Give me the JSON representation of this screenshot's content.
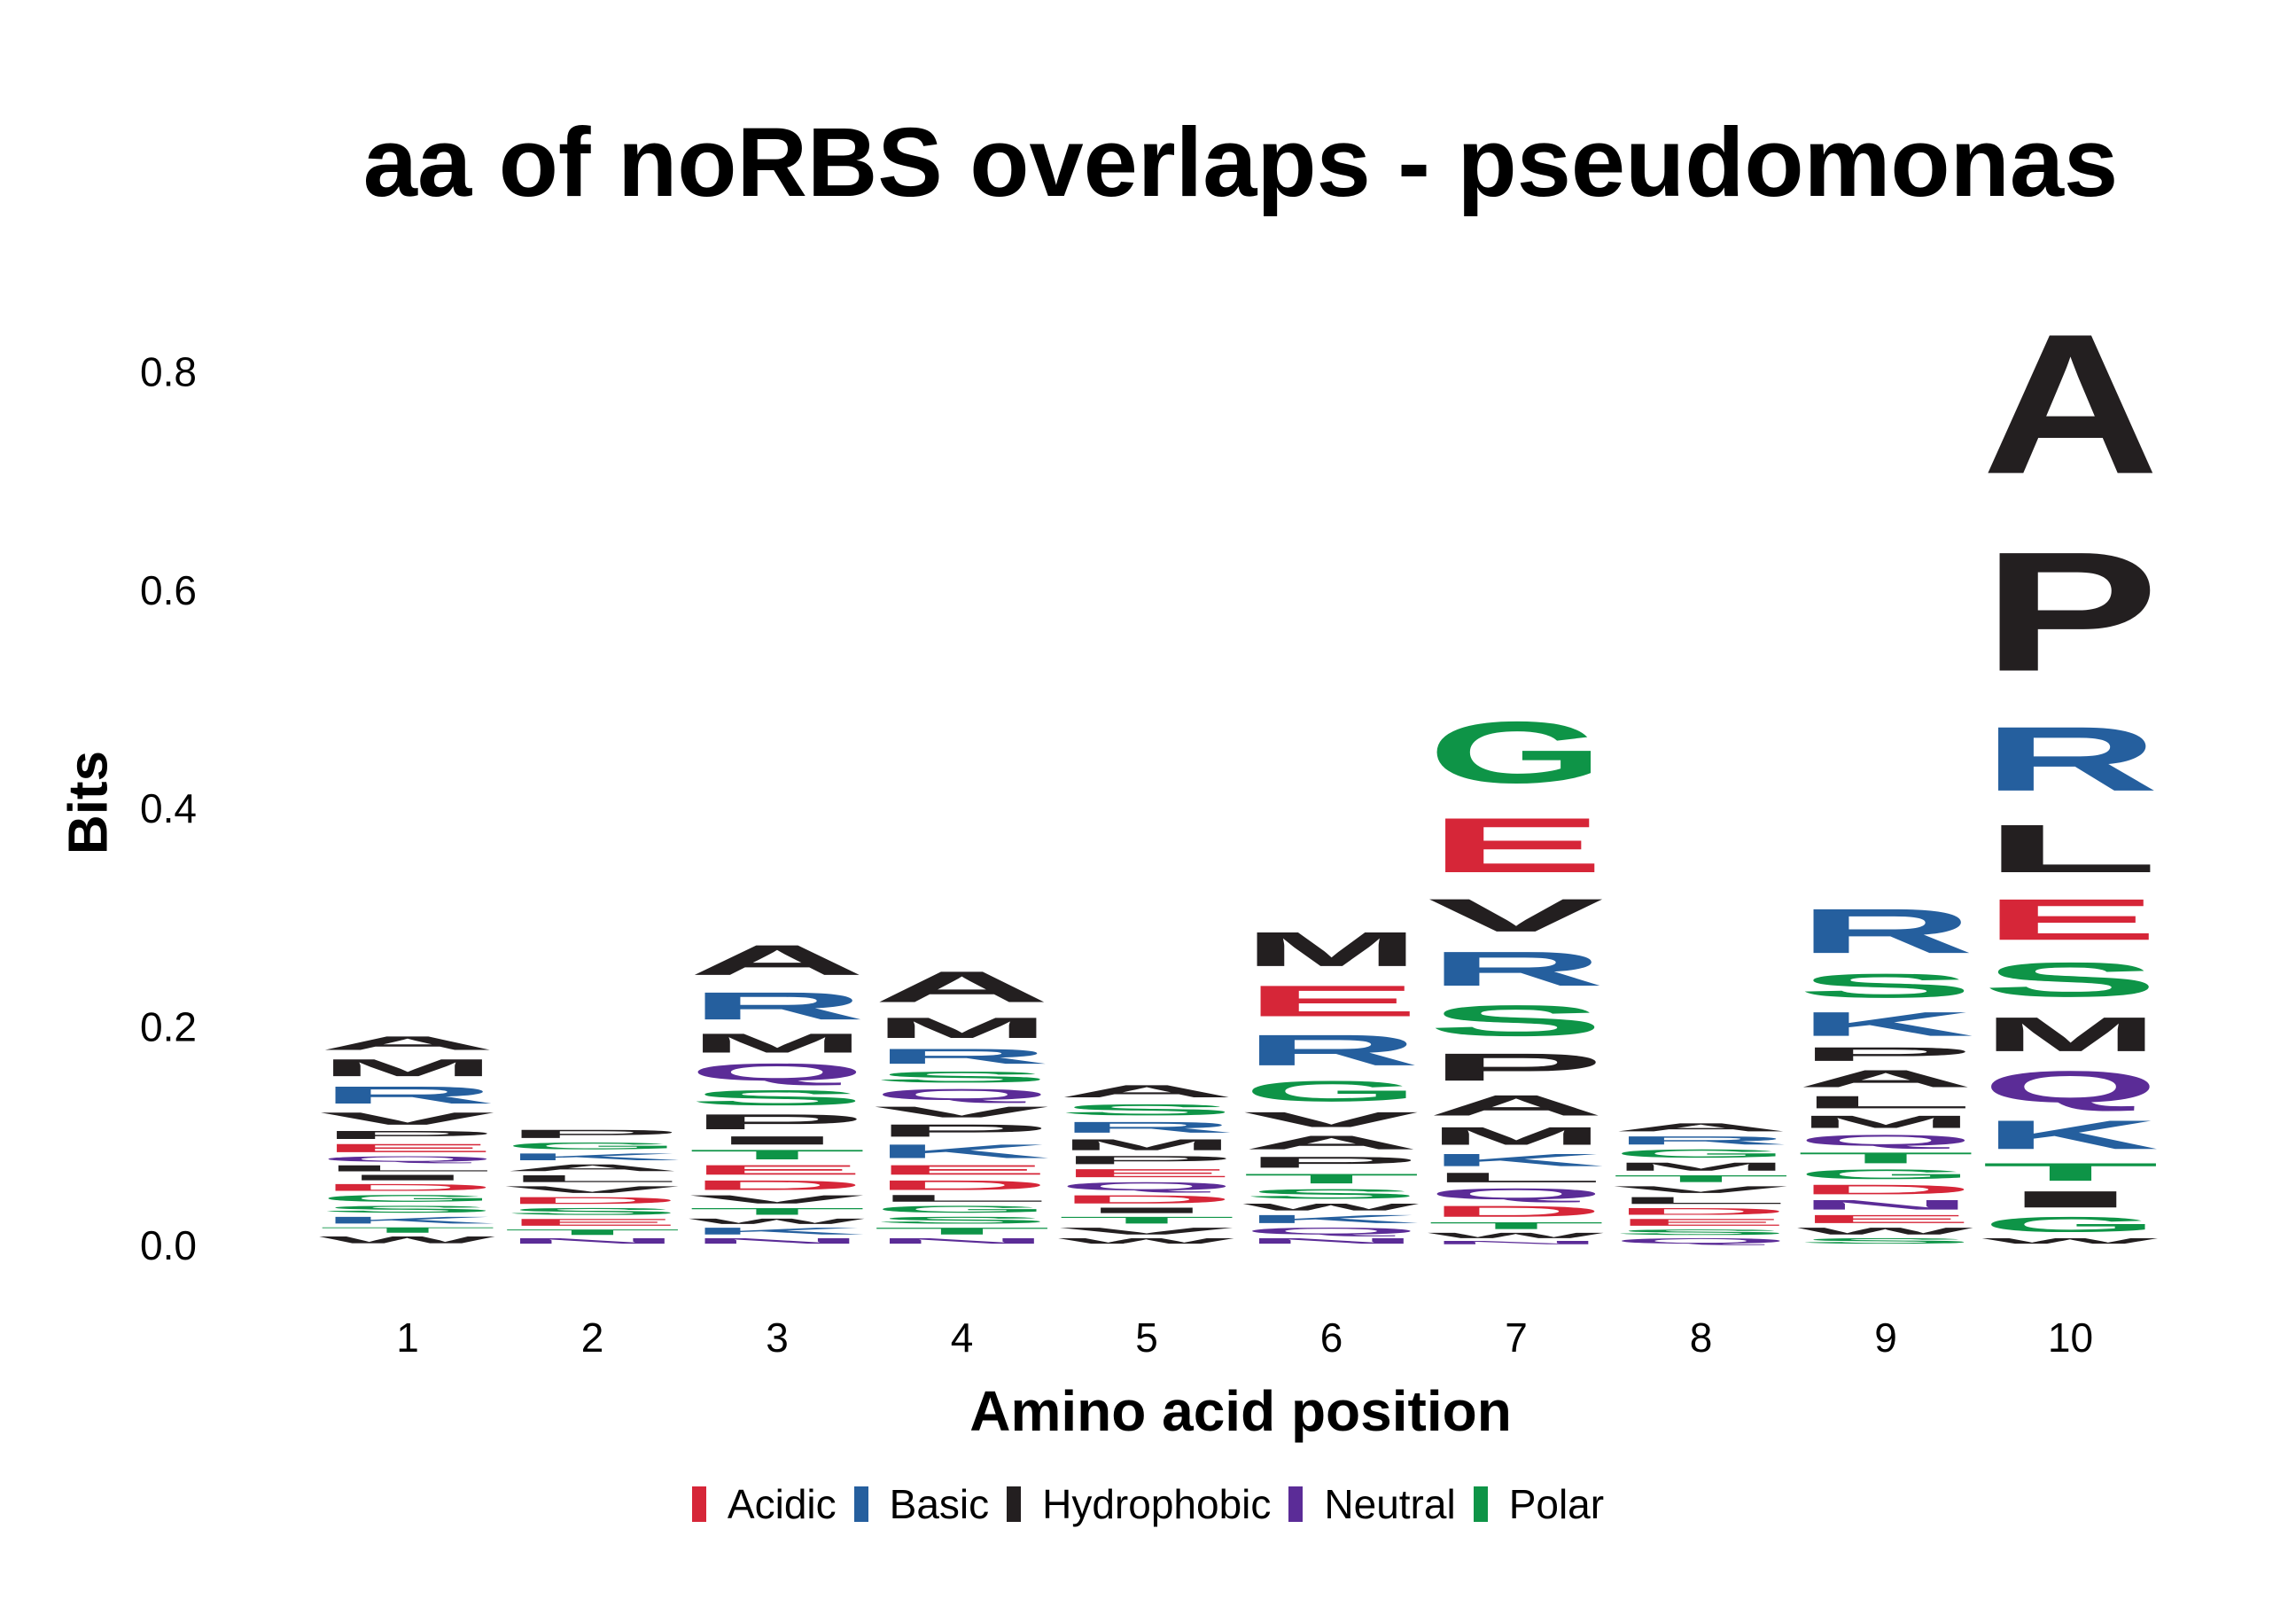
{
  "chart_data": {
    "type": "sequence-logo",
    "title": "aa of noRBS overlaps - pseudomonas",
    "xlabel": "Amino acid position",
    "ylabel": "Bits",
    "ylim": [
      0,
      0.88
    ],
    "yticks": [
      "0.0",
      "0.2",
      "0.4",
      "0.6",
      "0.8"
    ],
    "ytick_values": [
      0,
      0.2,
      0.4,
      0.6,
      0.8
    ],
    "categories": [
      "1",
      "2",
      "3",
      "4",
      "5",
      "6",
      "7",
      "8",
      "9",
      "10"
    ],
    "color_groups": {
      "Acidic": "#d62638",
      "Basic": "#255f9e",
      "Hydrophobic": "#231f20",
      "Neutral": "#5b2c97",
      "Polar": "#0e9447"
    },
    "legend": [
      "Acidic",
      "Basic",
      "Hydrophobic",
      "Neutral",
      "Polar"
    ],
    "positions": [
      {
        "position": "1",
        "total": 0.205,
        "letters": [
          {
            "aa": "W",
            "group": "Hydrophobic",
            "bits": 0.01
          },
          {
            "aa": "T",
            "group": "Polar",
            "bits": 0.008
          },
          {
            "aa": "K",
            "group": "Basic",
            "bits": 0.01
          },
          {
            "aa": "S",
            "group": "Polar",
            "bits": 0.01
          },
          {
            "aa": "G",
            "group": "Polar",
            "bits": 0.01
          },
          {
            "aa": "D",
            "group": "Acidic",
            "bits": 0.01
          },
          {
            "aa": "I",
            "group": "Hydrophobic",
            "bits": 0.008
          },
          {
            "aa": "L",
            "group": "Hydrophobic",
            "bits": 0.009
          },
          {
            "aa": "Q",
            "group": "Neutral",
            "bits": 0.008
          },
          {
            "aa": "E",
            "group": "Acidic",
            "bits": 0.012
          },
          {
            "aa": "P",
            "group": "Hydrophobic",
            "bits": 0.012
          },
          {
            "aa": "V",
            "group": "Hydrophobic",
            "bits": 0.018
          },
          {
            "aa": "R",
            "group": "Basic",
            "bits": 0.025
          },
          {
            "aa": "M",
            "group": "Hydrophobic",
            "bits": 0.025
          },
          {
            "aa": "A",
            "group": "Hydrophobic",
            "bits": 0.02
          }
        ]
      },
      {
        "position": "2",
        "total": 0.115,
        "letters": [
          {
            "aa": "N",
            "group": "Neutral",
            "bits": 0.008
          },
          {
            "aa": "T",
            "group": "Polar",
            "bits": 0.008
          },
          {
            "aa": "E",
            "group": "Acidic",
            "bits": 0.01
          },
          {
            "aa": "S",
            "group": "Polar",
            "bits": 0.01
          },
          {
            "aa": "D",
            "group": "Acidic",
            "bits": 0.01
          },
          {
            "aa": "V",
            "group": "Hydrophobic",
            "bits": 0.01
          },
          {
            "aa": "L",
            "group": "Hydrophobic",
            "bits": 0.01
          },
          {
            "aa": "A",
            "group": "Hydrophobic",
            "bits": 0.01
          },
          {
            "aa": "K",
            "group": "Basic",
            "bits": 0.01
          },
          {
            "aa": "G",
            "group": "Polar",
            "bits": 0.01
          },
          {
            "aa": "P",
            "group": "Hydrophobic",
            "bits": 0.012
          }
        ]
      },
      {
        "position": "3",
        "total": 0.31,
        "letters": [
          {
            "aa": "N",
            "group": "Neutral",
            "bits": 0.008
          },
          {
            "aa": "K",
            "group": "Basic",
            "bits": 0.01
          },
          {
            "aa": "W",
            "group": "Hydrophobic",
            "bits": 0.008
          },
          {
            "aa": "T",
            "group": "Polar",
            "bits": 0.01
          },
          {
            "aa": "V",
            "group": "Hydrophobic",
            "bits": 0.012
          },
          {
            "aa": "D",
            "group": "Acidic",
            "bits": 0.014
          },
          {
            "aa": "E",
            "group": "Acidic",
            "bits": 0.014
          },
          {
            "aa": "T",
            "group": "Polar",
            "bits": 0.014
          },
          {
            "aa": "I",
            "group": "Hydrophobic",
            "bits": 0.012
          },
          {
            "aa": "P",
            "group": "Hydrophobic",
            "bits": 0.022
          },
          {
            "aa": "S",
            "group": "Polar",
            "bits": 0.022
          },
          {
            "aa": "Q",
            "group": "Neutral",
            "bits": 0.025
          },
          {
            "aa": "M",
            "group": "Hydrophobic",
            "bits": 0.028
          },
          {
            "aa": "R",
            "group": "Basic",
            "bits": 0.04
          },
          {
            "aa": "A",
            "group": "Hydrophobic",
            "bits": 0.044
          }
        ]
      },
      {
        "position": "4",
        "total": 0.26,
        "letters": [
          {
            "aa": "N",
            "group": "Neutral",
            "bits": 0.008
          },
          {
            "aa": "T",
            "group": "Polar",
            "bits": 0.01
          },
          {
            "aa": "S",
            "group": "Polar",
            "bits": 0.01
          },
          {
            "aa": "G",
            "group": "Polar",
            "bits": 0.01
          },
          {
            "aa": "L",
            "group": "Hydrophobic",
            "bits": 0.01
          },
          {
            "aa": "D",
            "group": "Acidic",
            "bits": 0.014
          },
          {
            "aa": "E",
            "group": "Acidic",
            "bits": 0.014
          },
          {
            "aa": "K",
            "group": "Basic",
            "bits": 0.02
          },
          {
            "aa": "P",
            "group": "Hydrophobic",
            "bits": 0.018
          },
          {
            "aa": "V",
            "group": "Hydrophobic",
            "bits": 0.016
          },
          {
            "aa": "Q",
            "group": "Neutral",
            "bits": 0.016
          },
          {
            "aa": "S",
            "group": "Polar",
            "bits": 0.016
          },
          {
            "aa": "R",
            "group": "Basic",
            "bits": 0.022
          },
          {
            "aa": "M",
            "group": "Hydrophobic",
            "bits": 0.03
          },
          {
            "aa": "A",
            "group": "Hydrophobic",
            "bits": 0.045
          }
        ]
      },
      {
        "position": "5",
        "total": 0.18,
        "letters": [
          {
            "aa": "W",
            "group": "Hydrophobic",
            "bits": 0.008
          },
          {
            "aa": "V",
            "group": "Hydrophobic",
            "bits": 0.01
          },
          {
            "aa": "T",
            "group": "Polar",
            "bits": 0.01
          },
          {
            "aa": "I",
            "group": "Hydrophobic",
            "bits": 0.008
          },
          {
            "aa": "D",
            "group": "Acidic",
            "bits": 0.012
          },
          {
            "aa": "Q",
            "group": "Neutral",
            "bits": 0.012
          },
          {
            "aa": "E",
            "group": "Acidic",
            "bits": 0.012
          },
          {
            "aa": "P",
            "group": "Hydrophobic",
            "bits": 0.012
          },
          {
            "aa": "M",
            "group": "Hydrophobic",
            "bits": 0.016
          },
          {
            "aa": "R",
            "group": "Basic",
            "bits": 0.016
          },
          {
            "aa": "S",
            "group": "Polar",
            "bits": 0.016
          },
          {
            "aa": "A",
            "group": "Hydrophobic",
            "bits": 0.018
          }
        ]
      },
      {
        "position": "6",
        "total": 0.355,
        "letters": [
          {
            "aa": "N",
            "group": "Neutral",
            "bits": 0.008
          },
          {
            "aa": "Q",
            "group": "Neutral",
            "bits": 0.01
          },
          {
            "aa": "K",
            "group": "Basic",
            "bits": 0.012
          },
          {
            "aa": "W",
            "group": "Hydrophobic",
            "bits": 0.01
          },
          {
            "aa": "S",
            "group": "Polar",
            "bits": 0.014
          },
          {
            "aa": "T",
            "group": "Polar",
            "bits": 0.014
          },
          {
            "aa": "P",
            "group": "Hydrophobic",
            "bits": 0.016
          },
          {
            "aa": "A",
            "group": "Hydrophobic",
            "bits": 0.02
          },
          {
            "aa": "V",
            "group": "Hydrophobic",
            "bits": 0.022
          },
          {
            "aa": "G",
            "group": "Polar",
            "bits": 0.03
          },
          {
            "aa": "R",
            "group": "Basic",
            "bits": 0.045
          },
          {
            "aa": "E",
            "group": "Acidic",
            "bits": 0.045
          },
          {
            "aa": "M",
            "group": "Hydrophobic",
            "bits": 0.05
          }
        ]
      },
      {
        "position": "7",
        "total": 0.52,
        "letters": [
          {
            "aa": "N",
            "group": "Neutral",
            "bits": 0.005
          },
          {
            "aa": "W",
            "group": "Hydrophobic",
            "bits": 0.008
          },
          {
            "aa": "T",
            "group": "Polar",
            "bits": 0.01
          },
          {
            "aa": "D",
            "group": "Acidic",
            "bits": 0.016
          },
          {
            "aa": "Q",
            "group": "Neutral",
            "bits": 0.016
          },
          {
            "aa": "L",
            "group": "Hydrophobic",
            "bits": 0.014
          },
          {
            "aa": "K",
            "group": "Basic",
            "bits": 0.018
          },
          {
            "aa": "M",
            "group": "Hydrophobic",
            "bits": 0.026
          },
          {
            "aa": "A",
            "group": "Hydrophobic",
            "bits": 0.03
          },
          {
            "aa": "P",
            "group": "Hydrophobic",
            "bits": 0.04
          },
          {
            "aa": "S",
            "group": "Polar",
            "bits": 0.045
          },
          {
            "aa": "R",
            "group": "Basic",
            "bits": 0.05
          },
          {
            "aa": "V",
            "group": "Hydrophobic",
            "bits": 0.048
          },
          {
            "aa": "E",
            "group": "Acidic",
            "bits": 0.08
          },
          {
            "aa": "G",
            "group": "Polar",
            "bits": 0.09
          }
        ]
      },
      {
        "position": "8",
        "total": 0.125,
        "letters": [
          {
            "aa": "Q",
            "group": "Neutral",
            "bits": 0.008
          },
          {
            "aa": "S",
            "group": "Polar",
            "bits": 0.008
          },
          {
            "aa": "E",
            "group": "Acidic",
            "bits": 0.01
          },
          {
            "aa": "D",
            "group": "Acidic",
            "bits": 0.01
          },
          {
            "aa": "L",
            "group": "Hydrophobic",
            "bits": 0.01
          },
          {
            "aa": "V",
            "group": "Hydrophobic",
            "bits": 0.01
          },
          {
            "aa": "T",
            "group": "Polar",
            "bits": 0.01
          },
          {
            "aa": "M",
            "group": "Hydrophobic",
            "bits": 0.012
          },
          {
            "aa": "G",
            "group": "Polar",
            "bits": 0.012
          },
          {
            "aa": "R",
            "group": "Basic",
            "bits": 0.012
          },
          {
            "aa": "A",
            "group": "Hydrophobic",
            "bits": 0.012
          }
        ]
      },
      {
        "position": "9",
        "total": 0.34,
        "letters": [
          {
            "aa": "S",
            "group": "Polar",
            "bits": 0.008
          },
          {
            "aa": "W",
            "group": "Hydrophobic",
            "bits": 0.01
          },
          {
            "aa": "E",
            "group": "Acidic",
            "bits": 0.012
          },
          {
            "aa": "N",
            "group": "Neutral",
            "bits": 0.014
          },
          {
            "aa": "D",
            "group": "Acidic",
            "bits": 0.014
          },
          {
            "aa": "G",
            "group": "Polar",
            "bits": 0.014
          },
          {
            "aa": "T",
            "group": "Polar",
            "bits": 0.016
          },
          {
            "aa": "Q",
            "group": "Neutral",
            "bits": 0.016
          },
          {
            "aa": "M",
            "group": "Hydrophobic",
            "bits": 0.018
          },
          {
            "aa": "L",
            "group": "Hydrophobic",
            "bits": 0.018
          },
          {
            "aa": "A",
            "group": "Hydrophobic",
            "bits": 0.025
          },
          {
            "aa": "P",
            "group": "Hydrophobic",
            "bits": 0.02
          },
          {
            "aa": "K",
            "group": "Basic",
            "bits": 0.035
          },
          {
            "aa": "S",
            "group": "Polar",
            "bits": 0.035
          },
          {
            "aa": "R",
            "group": "Basic",
            "bits": 0.065
          }
        ]
      },
      {
        "position": "10",
        "total": 0.87,
        "letters": [
          {
            "aa": "W",
            "group": "Hydrophobic",
            "bits": 0.008
          },
          {
            "aa": "G",
            "group": "Polar",
            "bits": 0.022
          },
          {
            "aa": "I",
            "group": "Hydrophobic",
            "bits": 0.024
          },
          {
            "aa": "T",
            "group": "Polar",
            "bits": 0.026
          },
          {
            "aa": "K",
            "group": "Basic",
            "bits": 0.042
          },
          {
            "aa": "Q",
            "group": "Neutral",
            "bits": 0.046
          },
          {
            "aa": "M",
            "group": "Hydrophobic",
            "bits": 0.05
          },
          {
            "aa": "S",
            "group": "Polar",
            "bits": 0.05
          },
          {
            "aa": "E",
            "group": "Acidic",
            "bits": 0.06
          },
          {
            "aa": "L",
            "group": "Hydrophobic",
            "bits": 0.07
          },
          {
            "aa": "R",
            "group": "Basic",
            "bits": 0.094
          },
          {
            "aa": "P",
            "group": "Hydrophobic",
            "bits": 0.175
          },
          {
            "aa": "A",
            "group": "Hydrophobic",
            "bits": 0.205
          }
        ]
      }
    ]
  }
}
